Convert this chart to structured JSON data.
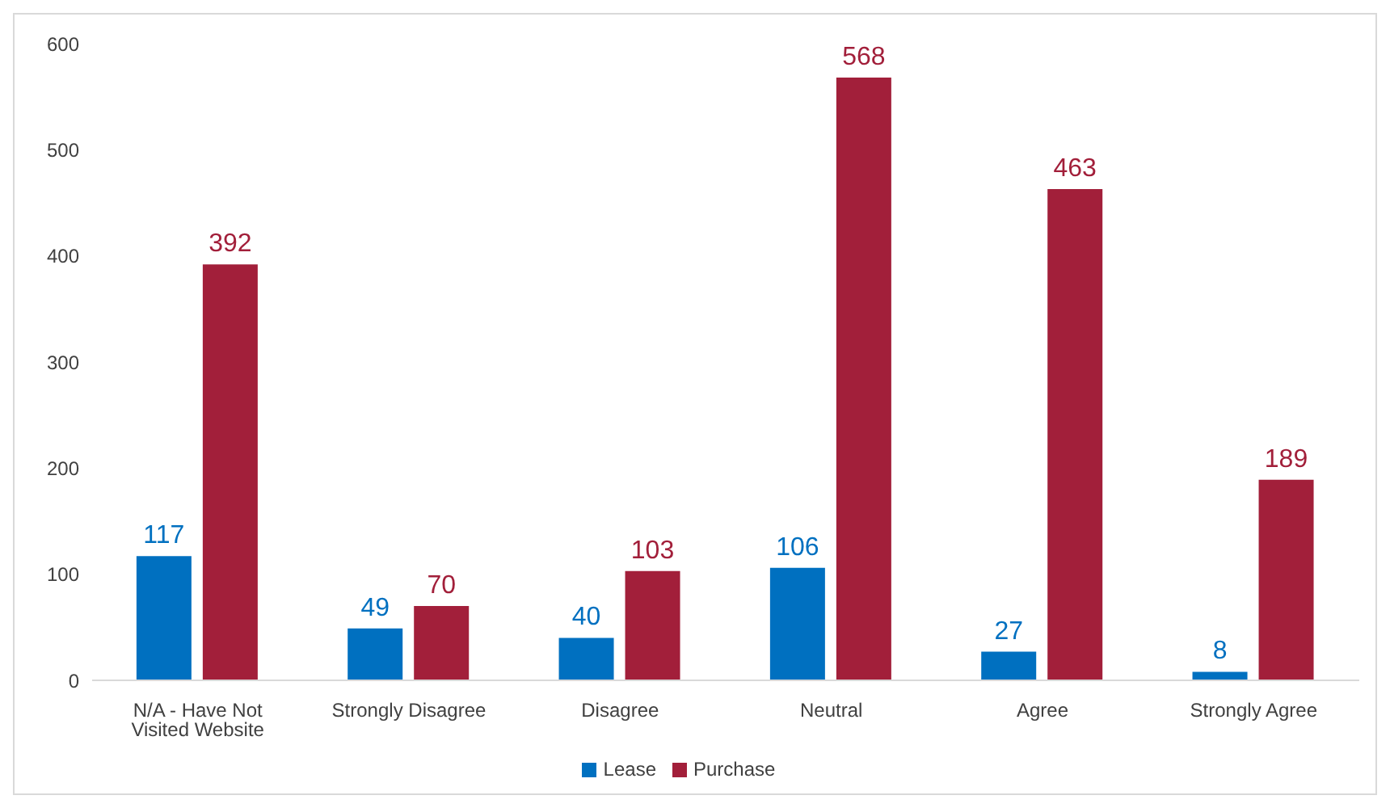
{
  "chart_data": {
    "type": "bar",
    "categories": [
      "N/A - Have Not Visited Website",
      "Strongly Disagree",
      "Disagree",
      "Neutral",
      "Agree",
      "Strongly Agree"
    ],
    "series": [
      {
        "name": "Lease",
        "color": "#0070c0",
        "values": [
          117,
          49,
          40,
          106,
          27,
          8
        ]
      },
      {
        "name": "Purchase",
        "color": "#a21f3a",
        "values": [
          392,
          70,
          103,
          568,
          463,
          189
        ]
      }
    ],
    "ylim": [
      0,
      600
    ],
    "yticks": [
      0,
      100,
      200,
      300,
      400,
      500,
      600
    ],
    "grid": false,
    "legend": "bottom",
    "data_labels": true
  }
}
